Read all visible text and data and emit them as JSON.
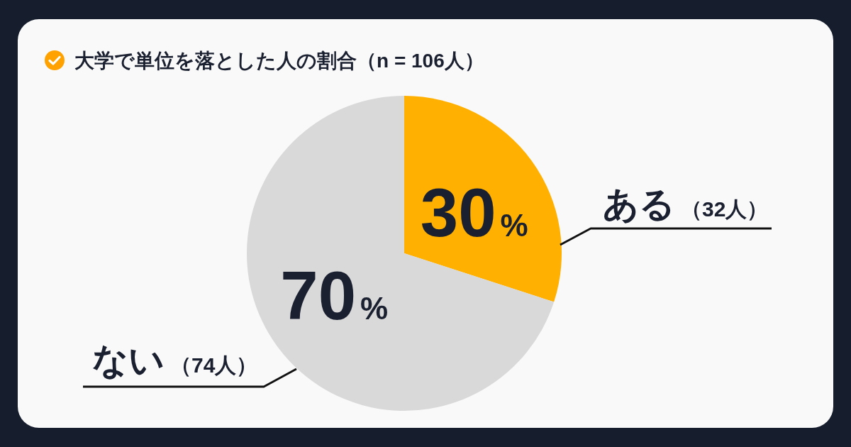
{
  "chart_data": {
    "type": "pie",
    "title": "大学で単位を落とした人の割合（n = 106人）",
    "categories": [
      "ある",
      "ない"
    ],
    "values": [
      30,
      70
    ],
    "colors": [
      "#ffb000",
      "#d9d9d9"
    ],
    "value_labels": [
      "30%",
      "70%"
    ],
    "annotations": [
      "（32人）",
      "（74人）"
    ]
  }
}
